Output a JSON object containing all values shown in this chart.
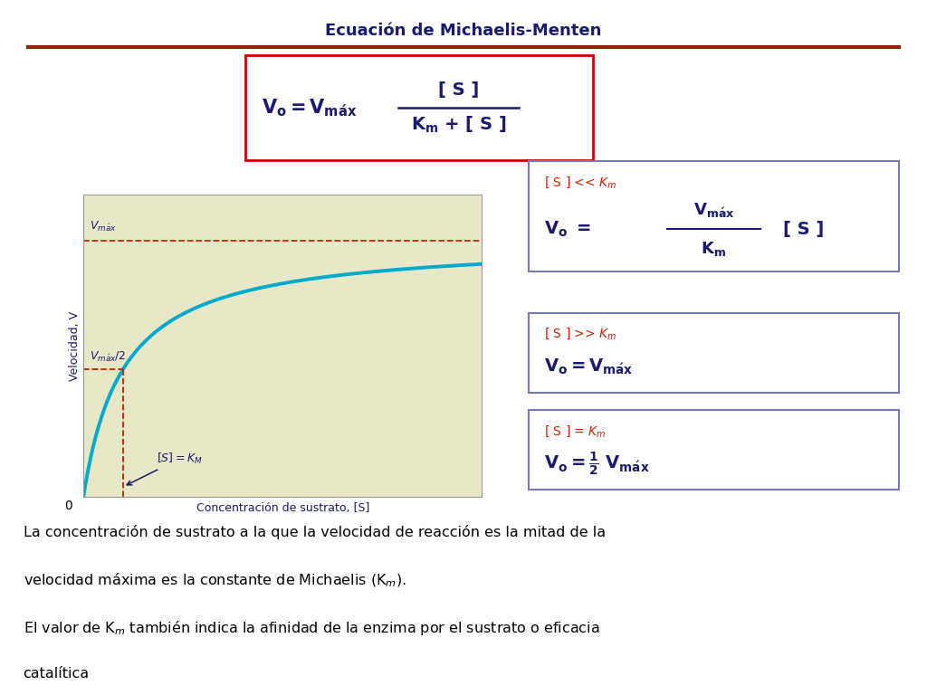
{
  "title": "Ecuación de Michaelis-Menten",
  "title_color": "#1a1a6e",
  "title_fontsize": 13,
  "bg_color": "#ffffff",
  "hrule_color": "#8B2500",
  "plot_bg": "#e8e8c8",
  "curve_color": "#00aacc",
  "dashed_color": "#cc2200",
  "dark_blue": "#1a1a6e",
  "red_text": "#cc2200",
  "box_border_red": "#cc0000",
  "box_border_blue": "#7777bb",
  "ylabel": "Velocidad, V",
  "xlabel": "Concentración de sustrato, [S]",
  "vmax": 1.0,
  "km": 0.3,
  "s_max": 3.0,
  "bottom_line1": "La concentración de sustrato a la que la velocidad de reacción es la mitad de la",
  "bottom_line2": "velocidad máxima es la constante de Michaelis (K$_m$).",
  "bottom_line3": "El valor de K$_m$ también indica la afinidad de la enzima por el sustrato o eficacia",
  "bottom_line4": "catalítica"
}
